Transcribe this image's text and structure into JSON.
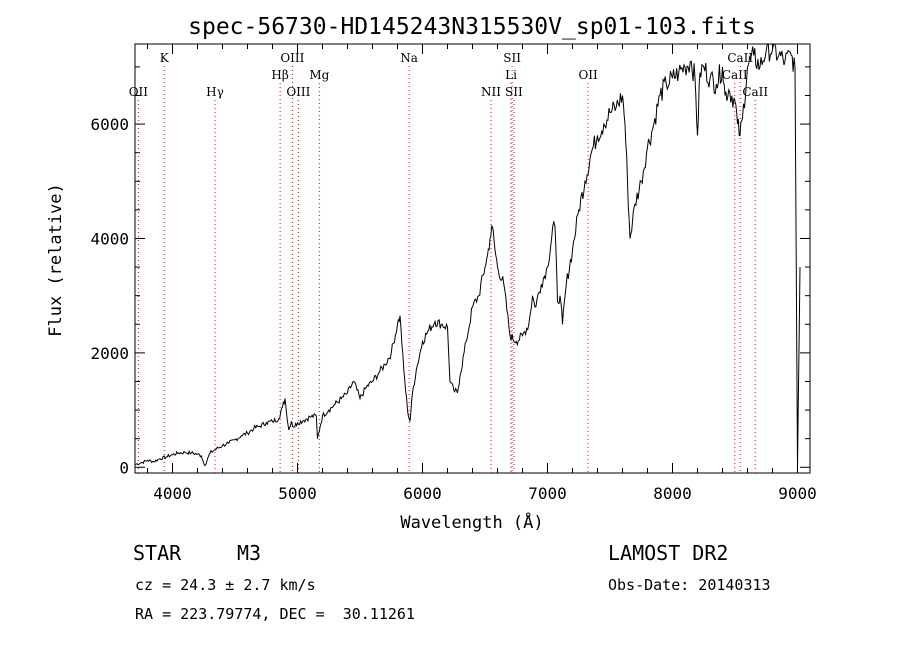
{
  "chart_data": {
    "type": "line",
    "title": "spec-56730-HD145243N315530V_sp01-103.fits",
    "xlabel": "Wavelength (Å)",
    "ylabel": "Flux (relative)",
    "xlim": [
      3700,
      9100
    ],
    "ylim": [
      -100,
      7400
    ],
    "xticks": [
      4000,
      5000,
      6000,
      7000,
      8000,
      9000
    ],
    "yticks": [
      0,
      2000,
      4000,
      6000
    ],
    "x": [
      3700,
      3750,
      3800,
      3850,
      3900,
      3950,
      4000,
      4050,
      4100,
      4150,
      4200,
      4230,
      4260,
      4300,
      4350,
      4400,
      4450,
      4500,
      4550,
      4600,
      4650,
      4700,
      4750,
      4800,
      4850,
      4880,
      4900,
      4930,
      4950,
      4970,
      5000,
      5050,
      5100,
      5150,
      5160,
      5180,
      5200,
      5250,
      5300,
      5350,
      5400,
      5450,
      5500,
      5550,
      5600,
      5650,
      5700,
      5750,
      5800,
      5820,
      5850,
      5880,
      5900,
      5920,
      5950,
      6000,
      6050,
      6100,
      6150,
      6200,
      6220,
      6250,
      6280,
      6300,
      6350,
      6400,
      6450,
      6500,
      6520,
      6540,
      6560,
      6580,
      6600,
      6650,
      6700,
      6750,
      6800,
      6850,
      6880,
      6900,
      6950,
      7000,
      7050,
      7060,
      7080,
      7100,
      7120,
      7150,
      7200,
      7250,
      7300,
      7350,
      7400,
      7450,
      7500,
      7550,
      7600,
      7620,
      7640,
      7660,
      7680,
      7700,
      7750,
      7800,
      7850,
      7900,
      7950,
      8000,
      8050,
      8100,
      8150,
      8180,
      8200,
      8220,
      8250,
      8300,
      8350,
      8400,
      8420,
      8450,
      8500,
      8520,
      8540,
      8560,
      8600,
      8650,
      8700,
      8750,
      8800,
      8850,
      8900,
      8950,
      8980,
      9000,
      9020
    ],
    "values": [
      50,
      80,
      120,
      100,
      150,
      180,
      220,
      250,
      260,
      250,
      230,
      200,
      30,
      250,
      320,
      380,
      420,
      480,
      550,
      600,
      680,
      720,
      780,
      800,
      850,
      1050,
      1200,
      650,
      800,
      700,
      780,
      820,
      880,
      900,
      500,
      700,
      900,
      1000,
      1100,
      1200,
      1300,
      1500,
      1200,
      1400,
      1500,
      1650,
      1800,
      2000,
      2500,
      2650,
      1700,
      1000,
      800,
      1300,
      1700,
      2200,
      2400,
      2550,
      2500,
      2450,
      1500,
      1350,
      1300,
      1600,
      2200,
      2800,
      3000,
      3500,
      3700,
      4000,
      4200,
      3800,
      3500,
      3200,
      2300,
      2200,
      2300,
      2500,
      3000,
      2800,
      3200,
      3500,
      4300,
      4200,
      2900,
      3000,
      2500,
      3200,
      3800,
      4500,
      5000,
      5500,
      5800,
      6000,
      6200,
      6300,
      6500,
      6000,
      5000,
      4000,
      4300,
      4600,
      5000,
      5600,
      6000,
      6500,
      6700,
      6800,
      6900,
      7000,
      7100,
      6800,
      5800,
      6900,
      7000,
      6800,
      6700,
      7000,
      6500,
      6600,
      6400,
      6000,
      5800,
      6100,
      7000,
      7200,
      7000,
      7300,
      7300,
      7200,
      7100,
      7200,
      7000,
      0,
      3500
    ],
    "annotations": [
      {
        "label": "OII",
        "x": 3727,
        "row": "bottom"
      },
      {
        "label": "K",
        "x": 3934,
        "row": "top"
      },
      {
        "label": "Hγ",
        "x": 4340,
        "row": "bottom"
      },
      {
        "label": "Hβ",
        "x": 4861,
        "row": "middle"
      },
      {
        "label": "OIII",
        "x": 4959,
        "row": "top"
      },
      {
        "label": "OIII",
        "x": 5007,
        "row": "bottom"
      },
      {
        "label": "Mg",
        "x": 5175,
        "row": "middle"
      },
      {
        "label": "Na",
        "x": 5893,
        "row": "top"
      },
      {
        "label": "NII",
        "x": 6548,
        "row": "bottom"
      },
      {
        "label": "SII",
        "x": 6717,
        "row": "top"
      },
      {
        "label": "Li",
        "x": 6708,
        "row": "middle"
      },
      {
        "label": "SII",
        "x": 6731,
        "row": "bottom"
      },
      {
        "label": "OII",
        "x": 7325,
        "row": "middle"
      },
      {
        "label": "CaII",
        "x": 8498,
        "row": "middle"
      },
      {
        "label": "CaII",
        "x": 8542,
        "row": "top"
      },
      {
        "label": "CaII",
        "x": 8662,
        "row": "bottom"
      }
    ],
    "grid": false,
    "line_color": "#000000",
    "marker_line_color": "#ff0000"
  },
  "info": {
    "object_class": "STAR",
    "subclass": "M3",
    "survey": "LAMOST DR2",
    "redshift": "cz = 24.3 ± 2.7 km/s",
    "obs_date": "Obs-Date: 20140313",
    "coords": "RA = 223.79774, DEC =  30.11261"
  }
}
